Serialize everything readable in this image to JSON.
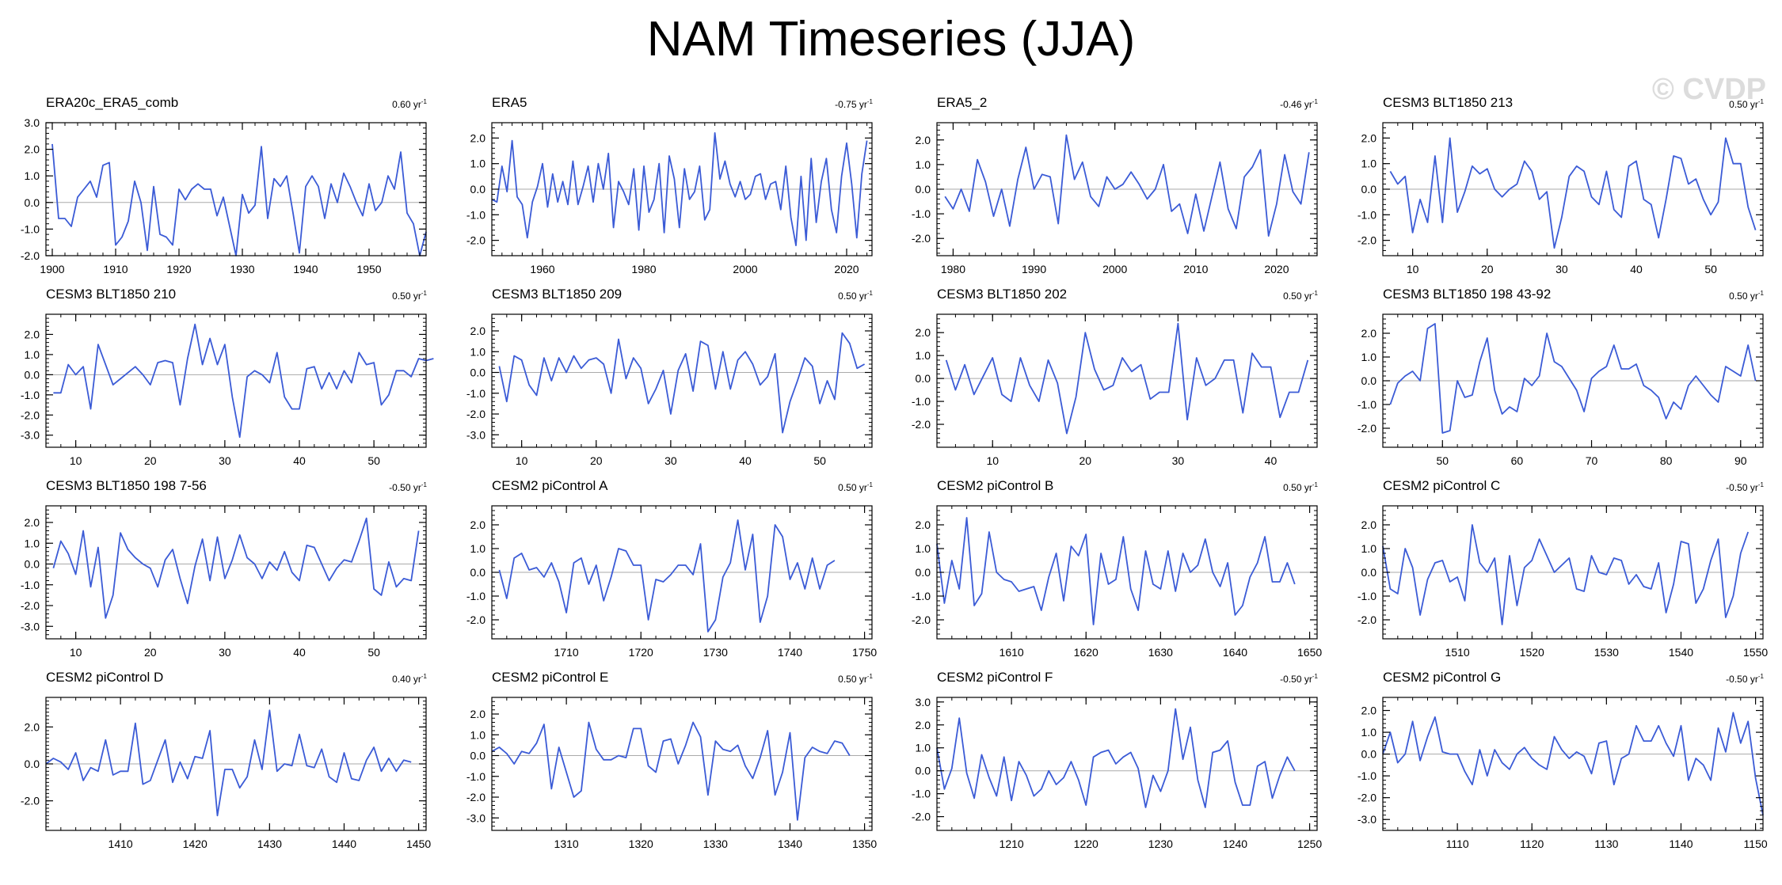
{
  "title": "NAM Timeseries (JJA)",
  "watermark": "© CVDP",
  "colors": {
    "line": "#3b5bd6",
    "zero": "#aaaaaa",
    "axis": "#000000"
  },
  "chart_data": [
    {
      "type": "line",
      "title": "ERA20c_ERA5_comb",
      "trend": "0.60",
      "trend_unit": "yr",
      "trend_exp": "-1",
      "xlim": [
        1899,
        1959
      ],
      "ylim": [
        -2.0,
        3.0
      ],
      "xticks": [
        1900,
        1910,
        1920,
        1930,
        1940,
        1950
      ],
      "yticks": [
        -2.0,
        -1.0,
        0.0,
        1.0,
        2.0,
        3.0
      ],
      "x0": 1900,
      "dx": 1,
      "y": [
        2.2,
        -0.6,
        -0.6,
        -0.9,
        0.2,
        0.5,
        0.8,
        0.2,
        1.4,
        1.5,
        -1.6,
        -1.3,
        -0.7,
        0.8,
        0.0,
        -1.8,
        0.6,
        -1.2,
        -1.3,
        -1.6,
        0.5,
        0.1,
        0.5,
        0.7,
        0.5,
        0.5,
        -0.5,
        0.2,
        -0.9,
        -2.0,
        0.3,
        -0.4,
        -0.1,
        2.1,
        -0.6,
        0.9,
        0.6,
        1.0,
        -0.4,
        -1.9,
        0.6,
        1.0,
        0.6,
        -0.6,
        0.7,
        0.0,
        1.1,
        0.6,
        0.0,
        -0.5,
        0.7,
        -0.3,
        0.0,
        1.0,
        0.5,
        1.9,
        -0.4,
        -0.8,
        -2.0,
        -1.1
      ]
    },
    {
      "type": "line",
      "title": "ERA5",
      "trend": "-0.75",
      "trend_unit": "yr",
      "trend_exp": "-1",
      "xlim": [
        1950,
        2025
      ],
      "ylim": [
        -2.6,
        2.6
      ],
      "xticks": [
        1960,
        1980,
        2000,
        2020
      ],
      "yticks": [
        -2.0,
        -1.0,
        0.0,
        1.0,
        2.0
      ],
      "x0": 1950,
      "dx": 1,
      "y": [
        -0.4,
        -0.5,
        0.9,
        -0.1,
        1.9,
        -0.3,
        -0.6,
        -1.9,
        -0.5,
        0.1,
        1.0,
        -0.7,
        0.6,
        -0.5,
        0.3,
        -0.6,
        1.1,
        -0.6,
        0.1,
        0.9,
        -0.5,
        1.0,
        0.0,
        1.4,
        -1.5,
        0.3,
        -0.1,
        -0.6,
        0.8,
        -1.6,
        0.9,
        -0.9,
        -0.4,
        1.0,
        -1.7,
        1.3,
        0.4,
        -1.5,
        0.8,
        -0.4,
        -0.1,
        0.9,
        -1.2,
        -0.8,
        2.2,
        0.4,
        1.1,
        0.2,
        -0.3,
        0.3,
        -0.4,
        -0.2,
        0.5,
        0.6,
        -0.4,
        0.2,
        0.3,
        -0.8,
        0.9,
        -1.1,
        -2.2,
        0.5,
        -2.0,
        1.2,
        -1.3,
        0.3,
        1.2,
        -0.8,
        -1.7,
        0.5,
        1.8,
        0.2,
        -1.9,
        0.6,
        1.9
      ]
    },
    {
      "type": "line",
      "title": "ERA5_2",
      "trend": "-0.46",
      "trend_unit": "yr",
      "trend_exp": "-1",
      "xlim": [
        1978,
        2025
      ],
      "ylim": [
        -2.7,
        2.7
      ],
      "xticks": [
        1980,
        1990,
        2000,
        2010,
        2020
      ],
      "yticks": [
        -2.0,
        -1.0,
        0.0,
        1.0,
        2.0
      ],
      "x0": 1979,
      "dx": 1,
      "y": [
        -0.3,
        -0.8,
        0.0,
        -0.9,
        1.2,
        0.3,
        -1.1,
        0.0,
        -1.5,
        0.4,
        1.7,
        0.0,
        0.6,
        0.5,
        -1.4,
        2.2,
        0.4,
        1.1,
        -0.3,
        -0.7,
        0.5,
        0.0,
        0.2,
        0.7,
        0.2,
        -0.4,
        0.0,
        1.0,
        -0.9,
        -0.6,
        -1.8,
        -0.2,
        -1.7,
        -0.3,
        1.1,
        -0.8,
        -1.6,
        0.5,
        0.9,
        1.6,
        -1.9,
        -0.6,
        1.4,
        -0.1,
        -0.6,
        1.5
      ]
    },
    {
      "type": "line",
      "title": "CESM3 BLT1850 213",
      "trend": "0.50",
      "trend_unit": "yr",
      "trend_exp": "-1",
      "xlim": [
        6,
        57
      ],
      "ylim": [
        -2.6,
        2.6
      ],
      "xticks": [
        10,
        20,
        30,
        40,
        50
      ],
      "yticks": [
        -2.0,
        -1.0,
        0.0,
        1.0,
        2.0
      ],
      "x0": 7,
      "dx": 1,
      "y": [
        0.7,
        0.2,
        0.5,
        -1.7,
        -0.4,
        -1.3,
        1.3,
        -1.3,
        2.0,
        -0.9,
        -0.1,
        0.9,
        0.6,
        0.8,
        0.0,
        -0.3,
        0.0,
        0.2,
        1.1,
        0.7,
        -0.4,
        -0.1,
        -2.3,
        -1.1,
        0.5,
        0.9,
        0.7,
        -0.3,
        -0.6,
        0.7,
        -0.8,
        -1.1,
        0.9,
        1.1,
        -0.4,
        -0.6,
        -1.9,
        -0.4,
        1.3,
        1.2,
        0.2,
        0.4,
        -0.4,
        -1.0,
        -0.5,
        2.0,
        1.0,
        1.0,
        -0.7,
        -1.6
      ]
    },
    {
      "type": "line",
      "title": "CESM3 BLT1850 210",
      "trend": "0.50",
      "trend_unit": "yr",
      "trend_exp": "-1",
      "xlim": [
        6,
        57
      ],
      "ylim": [
        -3.6,
        3.0
      ],
      "xticks": [
        10,
        20,
        30,
        40,
        50
      ],
      "yticks": [
        -3.0,
        -2.0,
        -1.0,
        0.0,
        1.0,
        2.0
      ],
      "x0": 7,
      "dx": 1,
      "y": [
        -0.9,
        -0.9,
        0.5,
        0.0,
        0.4,
        -1.7,
        1.5,
        0.5,
        -0.5,
        -0.2,
        0.1,
        0.4,
        0.0,
        -0.5,
        0.6,
        0.7,
        0.6,
        -1.5,
        0.8,
        2.5,
        0.5,
        1.8,
        0.5,
        1.5,
        -1.1,
        -3.1,
        -0.1,
        0.2,
        0.0,
        -0.4,
        1.1,
        -1.1,
        -1.7,
        -1.7,
        0.3,
        0.4,
        -0.7,
        0.1,
        -0.7,
        0.2,
        -0.4,
        1.1,
        0.5,
        0.6,
        -1.5,
        -1.0,
        0.2,
        0.2,
        -0.1,
        0.8,
        0.7,
        0.8
      ]
    },
    {
      "type": "line",
      "title": "CESM3 BLT1850 209",
      "trend": "0.50",
      "trend_unit": "yr",
      "trend_exp": "-1",
      "xlim": [
        6,
        57
      ],
      "ylim": [
        -3.6,
        2.8
      ],
      "xticks": [
        10,
        20,
        30,
        40,
        50
      ],
      "yticks": [
        -3.0,
        -2.0,
        -1.0,
        0.0,
        1.0,
        2.0
      ],
      "x0": 7,
      "dx": 1,
      "y": [
        0.3,
        -1.4,
        0.8,
        0.6,
        -0.6,
        -1.1,
        0.7,
        -0.4,
        0.7,
        0.0,
        0.8,
        0.2,
        0.6,
        0.7,
        0.4,
        -1.0,
        1.6,
        -0.3,
        0.7,
        0.2,
        -1.5,
        -0.8,
        0.1,
        -2.0,
        0.1,
        0.9,
        -0.9,
        1.5,
        1.3,
        -0.8,
        1.0,
        -0.8,
        0.6,
        1.0,
        0.4,
        -0.6,
        -0.2,
        0.9,
        -2.9,
        -1.4,
        -0.4,
        0.7,
        0.3,
        -1.5,
        -0.4,
        -1.3,
        1.9,
        1.4,
        0.2,
        0.4
      ]
    },
    {
      "type": "line",
      "title": "CESM3 BLT1850 202",
      "trend": "0.50",
      "trend_unit": "yr",
      "trend_exp": "-1",
      "xlim": [
        4,
        45
      ],
      "ylim": [
        -3.0,
        2.8
      ],
      "xticks": [
        10,
        20,
        30,
        40
      ],
      "yticks": [
        -2.0,
        -1.0,
        0.0,
        1.0,
        2.0
      ],
      "x0": 5,
      "dx": 1,
      "y": [
        0.8,
        -0.5,
        0.6,
        -0.7,
        0.1,
        0.9,
        -0.7,
        -1.0,
        0.9,
        -0.3,
        -1.0,
        0.8,
        -0.2,
        -2.4,
        -0.8,
        2.0,
        0.4,
        -0.5,
        -0.3,
        0.9,
        0.3,
        0.6,
        -0.9,
        -0.6,
        -0.6,
        2.4,
        -1.8,
        0.9,
        -0.3,
        0.0,
        0.8,
        0.8,
        -1.5,
        1.1,
        0.5,
        0.5,
        -1.7,
        -0.6,
        -0.6,
        0.8
      ]
    },
    {
      "type": "line",
      "title": "CESM3 BLT1850 198 43-92",
      "trend": "0.50",
      "trend_unit": "yr",
      "trend_exp": "-1",
      "xlim": [
        42,
        93
      ],
      "ylim": [
        -2.8,
        2.8
      ],
      "xticks": [
        50,
        60,
        70,
        80,
        90
      ],
      "yticks": [
        -2.0,
        -1.0,
        0.0,
        1.0,
        2.0
      ],
      "x0": 43,
      "dx": 1,
      "y": [
        -1.0,
        -0.1,
        0.2,
        0.4,
        0.0,
        2.2,
        2.4,
        -2.2,
        -2.1,
        0.0,
        -0.7,
        -0.6,
        0.8,
        1.8,
        -0.4,
        -1.4,
        -1.1,
        -1.3,
        0.1,
        -0.2,
        0.2,
        2.0,
        0.8,
        0.6,
        0.1,
        -0.4,
        -1.3,
        0.1,
        0.4,
        0.6,
        1.5,
        0.5,
        0.5,
        0.7,
        -0.2,
        -0.4,
        -0.7,
        -1.6,
        -0.9,
        -1.2,
        -0.2,
        0.2,
        -0.2,
        -0.6,
        -0.9,
        0.6,
        0.4,
        0.2,
        1.5,
        0.0
      ]
    },
    {
      "type": "line",
      "title": "CESM3 BLT1850 198 7-56",
      "trend": "-0.50",
      "trend_unit": "yr",
      "trend_exp": "-1",
      "xlim": [
        6,
        57
      ],
      "ylim": [
        -3.6,
        2.8
      ],
      "xticks": [
        10,
        20,
        30,
        40,
        50
      ],
      "yticks": [
        -3.0,
        -2.0,
        -1.0,
        0.0,
        1.0,
        2.0
      ],
      "x0": 7,
      "dx": 1,
      "y": [
        -0.2,
        1.1,
        0.5,
        -0.5,
        1.6,
        -1.1,
        0.8,
        -2.6,
        -1.5,
        1.5,
        0.7,
        0.3,
        0.0,
        -0.2,
        -1.1,
        0.2,
        0.7,
        -0.7,
        -1.9,
        -0.1,
        1.2,
        -0.8,
        1.3,
        -0.7,
        0.2,
        1.4,
        0.3,
        0.0,
        -0.7,
        0.1,
        -0.3,
        0.6,
        -0.4,
        -0.8,
        0.9,
        0.8,
        0.0,
        -0.8,
        -0.2,
        0.2,
        0.1,
        1.1,
        2.2,
        -1.2,
        -1.5,
        0.1,
        -1.1,
        -0.7,
        -0.8,
        1.6
      ]
    },
    {
      "type": "line",
      "title": "CESM2 piControl A",
      "trend": "0.50",
      "trend_unit": "yr",
      "trend_exp": "-1",
      "xlim": [
        1700,
        1751
      ],
      "ylim": [
        -2.8,
        2.8
      ],
      "xticks": [
        1710,
        1720,
        1730,
        1740,
        1750
      ],
      "yticks": [
        -2.0,
        -1.0,
        0.0,
        1.0,
        2.0
      ],
      "x0": 1701,
      "dx": 1,
      "y": [
        0.1,
        -1.1,
        0.6,
        0.8,
        0.1,
        0.2,
        -0.2,
        0.4,
        -0.4,
        -1.7,
        0.4,
        0.6,
        -0.5,
        0.3,
        -1.2,
        -0.2,
        1.0,
        0.9,
        0.3,
        0.3,
        -2.0,
        -0.3,
        -0.4,
        -0.1,
        0.3,
        0.3,
        -0.1,
        1.2,
        -2.5,
        -2.0,
        -0.2,
        0.4,
        2.2,
        0.1,
        1.6,
        -2.1,
        -1.0,
        2.0,
        1.5,
        -0.3,
        0.4,
        -0.7,
        0.6,
        -0.7,
        0.3,
        0.5
      ]
    },
    {
      "type": "line",
      "title": "CESM2 piControl B",
      "trend": "0.50",
      "trend_unit": "yr",
      "trend_exp": "-1",
      "xlim": [
        1600,
        1651
      ],
      "ylim": [
        -2.8,
        2.8
      ],
      "xticks": [
        1610,
        1620,
        1630,
        1640,
        1650
      ],
      "yticks": [
        -2.0,
        -1.0,
        0.0,
        1.0,
        2.0
      ],
      "x0": 1600,
      "dx": 1,
      "y": [
        1.2,
        -1.3,
        0.5,
        -0.7,
        2.3,
        -1.4,
        -0.9,
        1.7,
        0.0,
        -0.3,
        -0.4,
        -0.8,
        -0.7,
        -0.6,
        -1.6,
        -0.2,
        0.8,
        -1.2,
        1.1,
        0.7,
        1.6,
        -2.2,
        0.8,
        -0.5,
        -0.3,
        1.5,
        -0.7,
        -1.6,
        0.9,
        -0.5,
        -0.7,
        0.9,
        -0.8,
        0.8,
        0.0,
        0.3,
        1.4,
        0.0,
        -0.6,
        0.4,
        -1.8,
        -1.4,
        -0.2,
        0.4,
        1.5,
        -0.4,
        -0.4,
        0.4,
        -0.5
      ]
    },
    {
      "type": "line",
      "title": "CESM2 piControl C",
      "trend": "-0.50",
      "trend_unit": "yr",
      "trend_exp": "-1",
      "xlim": [
        1500,
        1551
      ],
      "ylim": [
        -2.8,
        2.8
      ],
      "xticks": [
        1510,
        1520,
        1530,
        1540,
        1550
      ],
      "yticks": [
        -2.0,
        -1.0,
        0.0,
        1.0,
        2.0
      ],
      "x0": 1500,
      "dx": 1,
      "y": [
        1.1,
        -0.7,
        -0.9,
        1.0,
        0.2,
        -1.8,
        -0.3,
        0.4,
        0.5,
        -0.4,
        -0.2,
        -1.2,
        2.0,
        0.4,
        0.0,
        0.6,
        -2.2,
        0.7,
        -1.4,
        0.2,
        0.5,
        1.4,
        0.7,
        0.0,
        0.3,
        0.6,
        -0.7,
        -0.8,
        0.7,
        0.0,
        -0.1,
        0.6,
        0.5,
        -0.5,
        -0.1,
        -0.6,
        -0.7,
        0.4,
        -1.7,
        -0.5,
        1.3,
        1.2,
        -1.3,
        -0.7,
        0.5,
        1.4,
        -1.9,
        -1.0,
        0.8,
        1.7
      ]
    },
    {
      "type": "line",
      "title": "CESM2 piControl D",
      "trend": "0.40",
      "trend_unit": "yr",
      "trend_exp": "-1",
      "xlim": [
        1400,
        1451
      ],
      "ylim": [
        -3.6,
        3.6
      ],
      "xticks": [
        1410,
        1420,
        1430,
        1440,
        1450
      ],
      "yticks": [
        -2.0,
        0.0,
        2.0
      ],
      "x0": 1400,
      "dx": 1,
      "y": [
        0.0,
        0.3,
        0.1,
        -0.3,
        0.6,
        -0.9,
        -0.2,
        -0.4,
        1.3,
        -0.6,
        -0.4,
        -0.4,
        2.2,
        -1.1,
        -0.9,
        0.2,
        1.3,
        -1.0,
        0.1,
        -0.8,
        0.4,
        0.3,
        1.8,
        -2.8,
        -0.3,
        -0.3,
        -1.3,
        -0.7,
        1.3,
        -0.3,
        2.9,
        -0.4,
        0.0,
        -0.1,
        1.6,
        -0.1,
        -0.2,
        0.8,
        -0.7,
        -1.0,
        0.6,
        -0.8,
        -0.9,
        0.2,
        0.9,
        -0.4,
        0.3,
        -0.4,
        0.2,
        0.1
      ]
    },
    {
      "type": "line",
      "title": "CESM2 piControl E",
      "trend": "0.50",
      "trend_unit": "yr",
      "trend_exp": "-1",
      "xlim": [
        1300,
        1351
      ],
      "ylim": [
        -3.6,
        2.8
      ],
      "xticks": [
        1310,
        1320,
        1330,
        1340,
        1350
      ],
      "yticks": [
        -3.0,
        -2.0,
        -1.0,
        0.0,
        1.0,
        2.0
      ],
      "x0": 1300,
      "dx": 1,
      "y": [
        0.2,
        0.4,
        0.1,
        -0.4,
        0.2,
        0.1,
        0.6,
        1.5,
        -1.6,
        0.4,
        -0.8,
        -2.0,
        -1.7,
        1.6,
        0.3,
        -0.2,
        -0.2,
        0.0,
        -0.1,
        1.3,
        1.3,
        -0.5,
        -0.8,
        0.7,
        0.8,
        -0.4,
        0.5,
        1.6,
        0.9,
        -1.9,
        0.7,
        0.3,
        0.2,
        0.5,
        -0.5,
        -1.1,
        -0.1,
        1.2,
        -1.9,
        -0.8,
        1.1,
        -3.1,
        -0.1,
        0.4,
        0.2,
        0.1,
        0.7,
        0.6,
        0.0
      ]
    },
    {
      "type": "line",
      "title": "CESM2 piControl F",
      "trend": "-0.50",
      "trend_unit": "yr",
      "trend_exp": "-1",
      "xlim": [
        1200,
        1251
      ],
      "ylim": [
        -2.6,
        3.2
      ],
      "xticks": [
        1210,
        1220,
        1230,
        1240,
        1250
      ],
      "yticks": [
        -2.0,
        -1.0,
        0.0,
        1.0,
        2.0,
        3.0
      ],
      "x0": 1200,
      "dx": 1,
      "y": [
        1.0,
        -0.8,
        0.1,
        2.3,
        -0.1,
        -1.2,
        0.7,
        -0.3,
        -1.1,
        0.6,
        -1.3,
        0.4,
        -0.2,
        -1.1,
        -0.8,
        0.0,
        -0.6,
        -0.3,
        0.4,
        -0.4,
        -1.5,
        0.6,
        0.8,
        0.9,
        0.3,
        0.6,
        0.8,
        0.1,
        -1.6,
        -0.2,
        -0.9,
        0.0,
        2.7,
        0.5,
        1.9,
        -0.4,
        -1.6,
        0.8,
        0.9,
        1.3,
        -0.5,
        -1.5,
        -1.5,
        0.2,
        0.4,
        -1.2,
        -0.2,
        0.6,
        0.0
      ]
    },
    {
      "type": "line",
      "title": "CESM2 piControl G",
      "trend": "-0.50",
      "trend_unit": "yr",
      "trend_exp": "-1",
      "xlim": [
        1100,
        1151
      ],
      "ylim": [
        -3.5,
        2.6
      ],
      "xticks": [
        1110,
        1120,
        1130,
        1140,
        1150
      ],
      "yticks": [
        -3.0,
        -2.0,
        -1.0,
        0.0,
        1.0,
        2.0
      ],
      "x0": 1100,
      "dx": 1,
      "y": [
        0.0,
        1.0,
        -0.4,
        0.0,
        1.5,
        -0.3,
        0.8,
        1.7,
        0.1,
        0.0,
        0.0,
        -0.8,
        -1.4,
        0.2,
        -1.0,
        0.2,
        -0.4,
        -0.7,
        0.0,
        0.3,
        -0.2,
        -0.5,
        -0.7,
        0.8,
        0.2,
        -0.2,
        0.1,
        -0.1,
        -0.9,
        0.5,
        0.6,
        -1.4,
        -0.2,
        0.0,
        1.3,
        0.6,
        0.6,
        1.3,
        0.5,
        -0.1,
        1.3,
        -1.2,
        -0.2,
        -0.5,
        -1.2,
        1.2,
        0.1,
        1.9,
        0.5,
        1.5,
        -1.1,
        -2.8
      ]
    }
  ]
}
